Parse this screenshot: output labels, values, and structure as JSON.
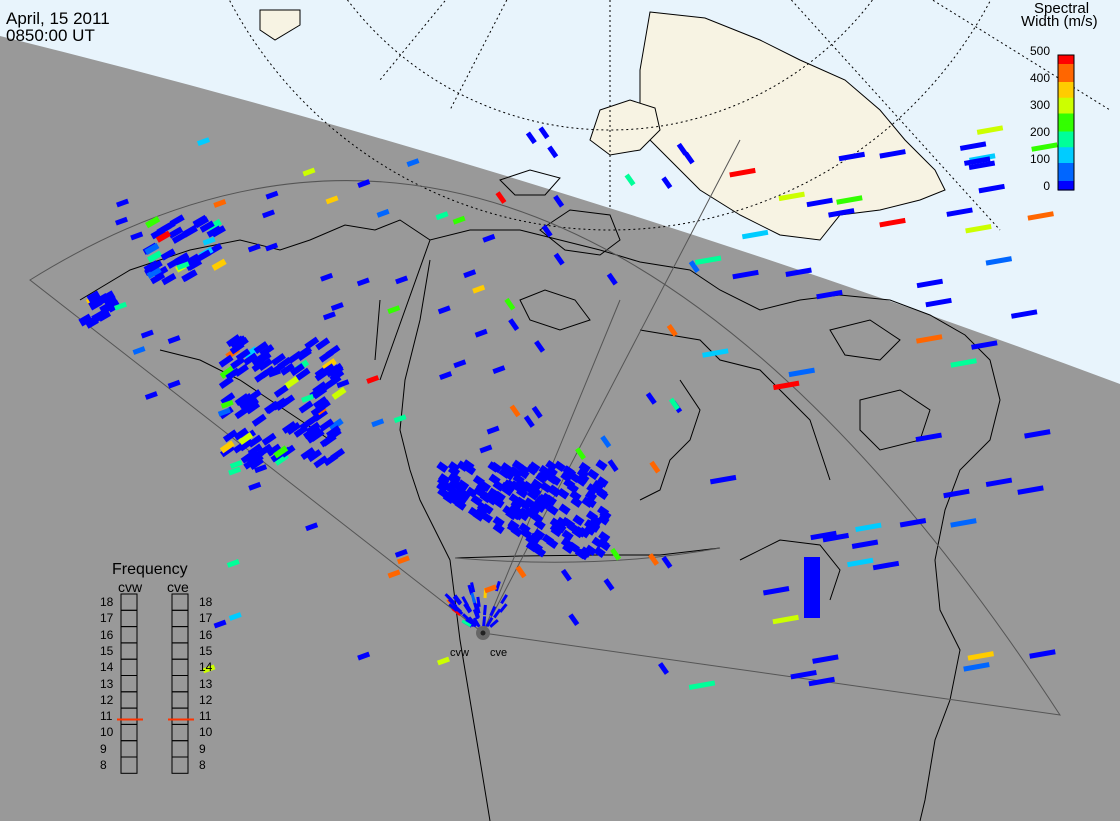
{
  "header": {
    "date": "April, 15 2011",
    "time": "0850:00 UT"
  },
  "colorbar": {
    "title_line1": "Spectral",
    "title_line2": "Width (m/s)",
    "ticks": [
      "0",
      "100",
      "200",
      "300",
      "400",
      "500"
    ],
    "range": [
      0,
      500
    ],
    "colors": [
      "#0000ff",
      "#0066ff",
      "#00ccff",
      "#00ff99",
      "#33ff00",
      "#ccff00",
      "#ffcc00",
      "#ff6600",
      "#ff0000"
    ]
  },
  "frequency_panel": {
    "title": "Frequency",
    "radars": [
      {
        "name": "cvw",
        "level": 10.8
      },
      {
        "name": "cve",
        "level": 10.8
      }
    ],
    "scale": [
      "18",
      "17",
      "16",
      "15",
      "14",
      "13",
      "12",
      "11",
      "10",
      "9",
      "8"
    ]
  },
  "sites": [
    {
      "name": "cvw",
      "label": "cvw"
    },
    {
      "name": "cve",
      "label": "cve"
    }
  ],
  "colors": {
    "night": "#999999",
    "day_ocean": "#e8f4fc",
    "day_land": "#f7f3e3",
    "coast": "#000000",
    "grid": "#000000"
  }
}
